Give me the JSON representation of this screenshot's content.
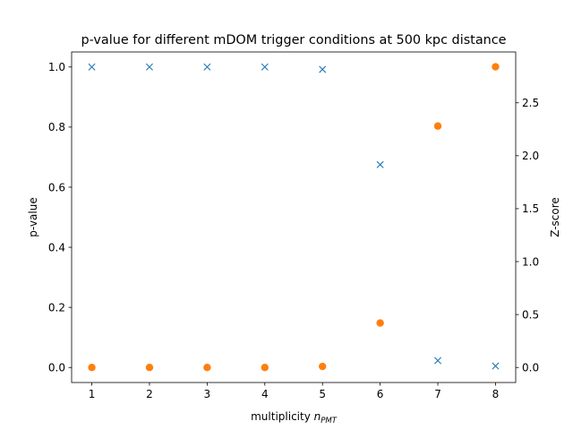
{
  "chart_data": {
    "type": "scatter",
    "title": "p-value for different mDOM trigger conditions at 500 kpc distance",
    "xlabel": {
      "base": "multiplicity ",
      "var": "n",
      "sub": "PMT"
    },
    "ylabel_left": "p-value",
    "ylabel_right": "Z-score",
    "x": [
      1,
      2,
      3,
      4,
      5,
      6,
      7,
      8
    ],
    "xlim": [
      0.65,
      8.35
    ],
    "ylim_left": [
      -0.05,
      1.05
    ],
    "ylim_right": [
      -0.142,
      2.98
    ],
    "xticks": [
      "1",
      "2",
      "3",
      "4",
      "5",
      "6",
      "7",
      "8"
    ],
    "yticks_left": [
      "0.0",
      "0.2",
      "0.4",
      "0.6",
      "0.8",
      "1.0"
    ],
    "yticks_right": [
      "0.0",
      "0.5",
      "1.0",
      "1.5",
      "2.0",
      "2.5"
    ],
    "series": [
      {
        "axis": "left",
        "marker": "x",
        "color": "#1f77b4",
        "values": [
          1.0,
          1.0,
          1.0,
          1.0,
          0.992,
          0.675,
          0.023,
          0.005
        ]
      },
      {
        "axis": "right",
        "marker": "circle",
        "color": "#ff7f0e",
        "values": [
          0.0,
          0.0,
          0.0,
          0.0,
          0.01,
          0.42,
          2.28,
          2.84
        ]
      }
    ],
    "grid": false,
    "legend": "none"
  }
}
